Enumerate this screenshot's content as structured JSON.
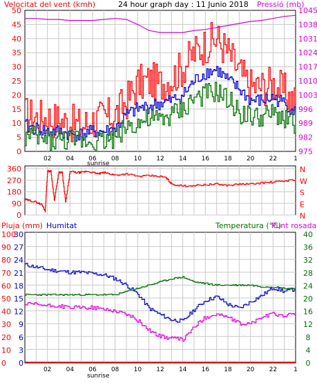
{
  "colors": {
    "wind_label": "#ff0000",
    "pressure_label": "#e000e0",
    "dir_axis": "#ff0000",
    "rain_axis": "#ff0000",
    "hum_axis": "#0000cc",
    "temp_axis": "#007000",
    "dew_label": "#e000e0",
    "wind_max": "#ff0000",
    "wind_avg": "#007000",
    "wind_mid": "#0000cc",
    "pressure": "#d000d0",
    "direction": "#ff0000",
    "rain": "#ff0000",
    "humidity": "#0000cc",
    "temperature": "#007000",
    "dewpoint": "#e000e0",
    "grid": "#c8c8c8"
  },
  "header": {
    "wind_title": "Velocitat del vent (kmh)",
    "center_title": "24 hour graph day : 11 Junio 2018",
    "pressure_title": "Pressió (mb)"
  },
  "labels": {
    "sunrise_top": "sunrise",
    "sunrise_bottom": "sunrise",
    "rain": "Pluja (mm)",
    "humidity": "Humitat",
    "temperature": "Temperatura (°C)",
    "dewpoint": "Punt rosada"
  },
  "chart_data": [
    {
      "type": "line",
      "panel": "wind_pressure",
      "x_ticks": [
        "02",
        "04",
        "06",
        "08",
        "10",
        "12",
        "14",
        "16",
        "18",
        "20",
        "22"
      ],
      "y_left_ticks": [
        "0",
        "5",
        "10",
        "15",
        "20",
        "25",
        "30",
        "35",
        "40",
        "45",
        "50"
      ],
      "y_left_range": [
        0,
        50
      ],
      "y_right_ticks": [
        "975",
        "982",
        "989",
        "996",
        "1003",
        "1010",
        "1017",
        "1024",
        "1031",
        "1038",
        "1045"
      ],
      "y_right_range": [
        975,
        1045
      ],
      "x": [
        0,
        1,
        2,
        3,
        4,
        5,
        6,
        7,
        8,
        9,
        10,
        11,
        12,
        13,
        14,
        15,
        16,
        17,
        18,
        19,
        20,
        21,
        22,
        23,
        24
      ],
      "series": [
        {
          "key": "wind_max",
          "values": [
            13,
            12,
            12,
            11,
            10,
            9,
            11,
            12,
            13,
            18,
            24,
            25,
            24,
            26,
            30,
            35,
            38,
            40,
            35,
            28,
            23,
            23,
            24,
            21,
            17
          ]
        },
        {
          "key": "wind_mid",
          "values": [
            9,
            8,
            7,
            7,
            6,
            6,
            7,
            7,
            8,
            13,
            15,
            16,
            17,
            18,
            20,
            25,
            28,
            29,
            25,
            22,
            18,
            18,
            19,
            17,
            14
          ]
        },
        {
          "key": "wind_avg",
          "values": [
            5,
            5,
            4,
            4,
            4,
            4,
            4,
            4,
            5,
            9,
            10,
            11,
            11,
            13,
            15,
            19,
            20,
            21,
            18,
            14,
            12,
            12,
            13,
            12,
            10
          ]
        },
        {
          "key": "pressure",
          "values": [
            1041,
            1041,
            1040.5,
            1040.5,
            1040,
            1040,
            1040,
            1040.5,
            1041,
            1040.5,
            1038,
            1035,
            1034,
            1034,
            1034,
            1035,
            1035.5,
            1036.5,
            1037.5,
            1038.5,
            1039.5,
            1040,
            1041,
            1042,
            1042.5
          ]
        }
      ]
    },
    {
      "type": "line",
      "panel": "wind_direction",
      "y_ticks": [
        "0",
        "90",
        "180",
        "270",
        "360"
      ],
      "y_range": [
        0,
        360
      ],
      "compass": [
        "N",
        "W",
        "S",
        "E",
        "N"
      ],
      "x": [
        0,
        0.5,
        1,
        1.5,
        1.8,
        2,
        2.3,
        2.6,
        3,
        3.3,
        3.6,
        4,
        4.5,
        5,
        5.5,
        6,
        6.5,
        7,
        7.5,
        8,
        9,
        10,
        11,
        12,
        12.5,
        13,
        14,
        15,
        16,
        17,
        18,
        19,
        20,
        21,
        22,
        23,
        24
      ],
      "series": [
        {
          "key": "direction",
          "values": [
            120,
            110,
            100,
            80,
            30,
            340,
            340,
            120,
            330,
            330,
            100,
            340,
            330,
            330,
            340,
            330,
            320,
            330,
            320,
            310,
            320,
            300,
            305,
            300,
            290,
            240,
            225,
            230,
            235,
            240,
            230,
            240,
            240,
            250,
            255,
            265,
            275
          ]
        }
      ]
    },
    {
      "type": "line",
      "panel": "rain_humidity_temperature",
      "y_rain_ticks": [
        "0",
        "10",
        "20",
        "30",
        "40",
        "50",
        "60",
        "70",
        "80",
        "90",
        "100"
      ],
      "y_rain_range": [
        0,
        100
      ],
      "y_hum_ticks": [
        "0",
        "3",
        "6",
        "9",
        "12",
        "15",
        "18",
        "21",
        "24",
        "27",
        "30"
      ],
      "y_temp_ticks": [
        "0",
        "4",
        "8",
        "12",
        "16",
        "20",
        "24",
        "28",
        "32",
        "36",
        "40"
      ],
      "y_temp_range": [
        0,
        40
      ],
      "x": [
        0,
        1,
        2,
        3,
        4,
        5,
        6,
        7,
        8,
        9,
        10,
        11,
        12,
        13,
        14,
        15,
        16,
        17,
        18,
        19,
        20,
        21,
        22,
        23,
        24
      ],
      "series": [
        {
          "key": "rain",
          "values": [
            0,
            0,
            0,
            0,
            0,
            0,
            0,
            0,
            0,
            0,
            0,
            0,
            0,
            0,
            0,
            0,
            0,
            0,
            0,
            0,
            0,
            0,
            0,
            0,
            0
          ]
        },
        {
          "key": "humidity",
          "values": [
            76,
            74,
            72,
            71,
            70,
            70,
            69,
            68,
            65,
            60,
            53,
            42,
            37,
            33,
            32,
            41,
            48,
            51,
            45,
            42,
            47,
            52,
            58,
            55,
            57
          ]
        },
        {
          "key": "temperature",
          "values": [
            21,
            21,
            21,
            21,
            21,
            21,
            21,
            21,
            21,
            22,
            23,
            24,
            25,
            26,
            26.5,
            25,
            24.5,
            24,
            24,
            24,
            24,
            23.5,
            23.5,
            23,
            23
          ]
        },
        {
          "key": "dewpoint",
          "values": [
            18,
            18,
            17.5,
            17.5,
            17,
            17,
            17,
            16.5,
            16,
            15,
            13,
            10,
            8,
            7.5,
            7,
            11,
            14,
            15,
            14,
            12,
            12,
            14,
            15,
            14.5,
            15
          ]
        }
      ]
    }
  ]
}
